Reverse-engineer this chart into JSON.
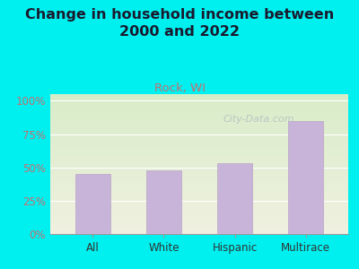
{
  "title": "Change in household income between\n2000 and 2022",
  "subtitle": "Rock, WI",
  "categories": [
    "All",
    "White",
    "Hispanic",
    "Multirace"
  ],
  "values": [
    45,
    48,
    53,
    85
  ],
  "bar_color": "#c8b4d8",
  "bar_edge_color": "#b8a4c8",
  "title_fontsize": 11.5,
  "subtitle_fontsize": 9.5,
  "subtitle_color": "#c47070",
  "title_color": "#1a1a2e",
  "bg_color": "#00efef",
  "plot_bg_top_left": "#d8ecc8",
  "plot_bg_bottom_right": "#f0f0e0",
  "yticks": [
    0,
    25,
    50,
    75,
    100
  ],
  "ytick_labels": [
    "0%",
    "25%",
    "50%",
    "75%",
    "100%"
  ],
  "ymax": 105,
  "watermark": "City-Data.com",
  "watermark_color": "#b0b8c0",
  "tick_color": "#c47070"
}
